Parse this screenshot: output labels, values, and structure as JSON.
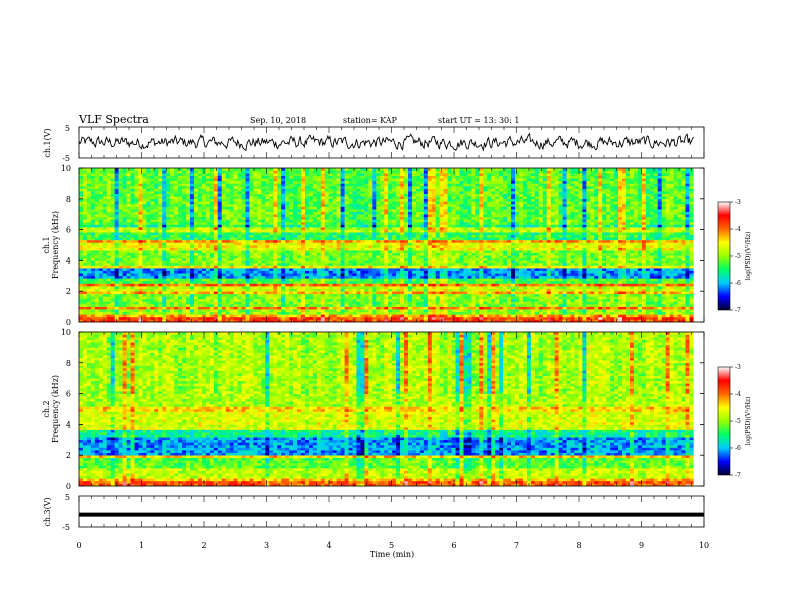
{
  "header": {
    "title": "VLF Spectra",
    "date": "Sep. 10, 2018",
    "station": "station= KAP",
    "start": "start  UT  =   13: 30: 1"
  },
  "chart_data": {
    "type": "heatmap",
    "xlabel": "Time  (min)",
    "x_ticks": [
      "0",
      "1",
      "2",
      "3",
      "4",
      "5",
      "6",
      "7",
      "8",
      "9",
      "10"
    ],
    "xlim": [
      0,
      10
    ],
    "data_end_min": 9.83,
    "panels": [
      {
        "id": "ch1-waveform",
        "type": "line",
        "ylabel": "ch.1(V)",
        "ylim": [
          -5,
          5
        ],
        "y_ticks": [
          "5",
          "-5"
        ],
        "signal": "broadband noise, amplitude about ±2 V"
      },
      {
        "id": "ch1-spectrogram",
        "type": "heatmap",
        "ylabel_top": "ch.1",
        "ylabel": "Frequency  (kHz)",
        "ylim": [
          0,
          10
        ],
        "y_ticks": [
          "0",
          "2",
          "4",
          "6",
          "8",
          "10"
        ],
        "bands": [
          {
            "f": [
              0.0,
              0.3
            ],
            "v": -3.8
          },
          {
            "f": [
              0.3,
              0.45
            ],
            "v": -4.2
          },
          {
            "f": [
              0.45,
              0.9
            ],
            "v": -5.0
          },
          {
            "f": [
              0.9,
              1.05
            ],
            "v": -4.1
          },
          {
            "f": [
              1.05,
              1.9
            ],
            "v": -5.1
          },
          {
            "f": [
              1.9,
              2.05
            ],
            "v": -4.3
          },
          {
            "f": [
              2.05,
              2.3
            ],
            "v": -4.8
          },
          {
            "f": [
              2.3,
              2.5
            ],
            "v": -4.0
          },
          {
            "f": [
              2.5,
              2.9
            ],
            "v": -5.3
          },
          {
            "f": [
              2.9,
              3.5
            ],
            "v": -6.1
          },
          {
            "f": [
              3.5,
              3.7
            ],
            "v": -4.5
          },
          {
            "f": [
              3.7,
              4.7
            ],
            "v": -5.1
          },
          {
            "f": [
              4.7,
              5.1
            ],
            "v": -4.6
          },
          {
            "f": [
              5.1,
              5.3
            ],
            "v": -4.2
          },
          {
            "f": [
              5.3,
              5.9
            ],
            "v": -5.4
          },
          {
            "f": [
              5.9,
              6.1
            ],
            "v": -4.8
          },
          {
            "f": [
              6.1,
              6.4
            ],
            "v": -5.5
          },
          {
            "f": [
              6.4,
              10.0
            ],
            "v": -5.2
          }
        ]
      },
      {
        "id": "ch2-spectrogram",
        "type": "heatmap",
        "ylabel_top": "ch.2",
        "ylabel": "Frequency  (kHz)",
        "ylim": [
          0,
          10
        ],
        "y_ticks": [
          "0",
          "2",
          "4",
          "6",
          "8",
          "10"
        ],
        "bands": [
          {
            "f": [
              0.0,
              0.3
            ],
            "v": -3.9
          },
          {
            "f": [
              0.3,
              0.5
            ],
            "v": -4.3
          },
          {
            "f": [
              0.5,
              1.1
            ],
            "v": -4.8
          },
          {
            "f": [
              1.1,
              1.8
            ],
            "v": -5.2
          },
          {
            "f": [
              1.8,
              2.0
            ],
            "v": -4.4
          },
          {
            "f": [
              2.0,
              3.2
            ],
            "v": -6.1
          },
          {
            "f": [
              3.2,
              3.6
            ],
            "v": -5.6
          },
          {
            "f": [
              3.6,
              4.8
            ],
            "v": -4.7
          },
          {
            "f": [
              4.8,
              5.2
            ],
            "v": -4.4
          },
          {
            "f": [
              5.2,
              10.0
            ],
            "v": -4.9
          }
        ]
      },
      {
        "id": "ch3-waveform",
        "type": "line",
        "ylabel": "ch.3(V)",
        "ylim": [
          -5,
          5
        ],
        "y_ticks": [
          "5",
          "-5"
        ],
        "value": -1.0
      }
    ],
    "colorbar": {
      "label": "log(PSD)(V²/Hz)",
      "range": [
        -7,
        -3
      ],
      "ticks": [
        "-3",
        "-4",
        "-5",
        "-6",
        "-7"
      ],
      "colors": [
        "#000030",
        "#0000ff",
        "#00ccff",
        "#00ff66",
        "#99ff00",
        "#ffff00",
        "#ff6600",
        "#ff0000",
        "#ffffff"
      ]
    }
  }
}
